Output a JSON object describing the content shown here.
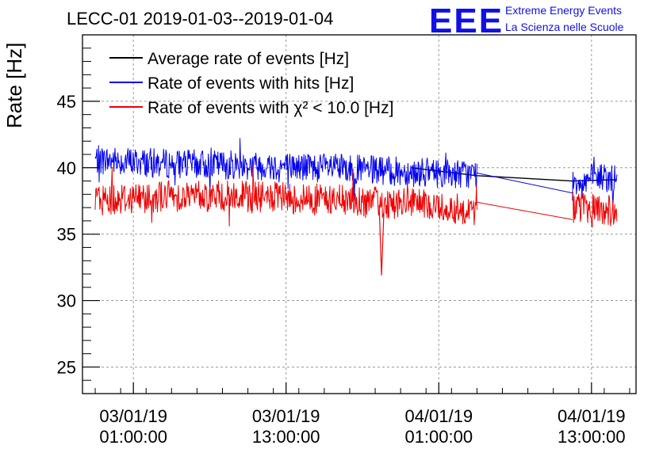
{
  "chart_data": {
    "type": "line",
    "title": "LECC-01 2019-01-03--2019-01-04",
    "ylabel": "Rate [Hz]",
    "xlabel": "",
    "ylim": [
      23,
      50
    ],
    "yticks": [
      25,
      30,
      35,
      40,
      45
    ],
    "xlim": [
      "2019-01-02 21:00:00",
      "2019-01-04 16:30:00"
    ],
    "xticks": [
      {
        "time": "2019-01-03 01:00:00",
        "label_date": "03/01/19",
        "label_time": "01:00:00"
      },
      {
        "time": "2019-01-03 13:00:00",
        "label_date": "03/01/19",
        "label_time": "13:00:00"
      },
      {
        "time": "2019-01-04 01:00:00",
        "label_date": "04/01/19",
        "label_time": "01:00:00"
      },
      {
        "time": "2019-01-04 13:00:00",
        "label_date": "04/01/19",
        "label_time": "13:00:00"
      }
    ],
    "grid": true,
    "legend_position": "top-left",
    "series": [
      {
        "name": "Average rate of events [Hz]",
        "color": "#000000",
        "segments": [
          [
            [
              "2019-01-03 22:50:00",
              40.0
            ],
            [
              "2019-01-04 04:00:00",
              39.4
            ],
            [
              "2019-01-04 11:30:00",
              39.0
            ],
            [
              "2019-01-04 15:00:00",
              39.1
            ]
          ]
        ]
      },
      {
        "name": "Rate of events with hits [Hz]",
        "color": "#0000ee",
        "segments": [
          [
            [
              "2019-01-02 22:00:00",
              40.6
            ],
            [
              "2019-01-03 04:00:00",
              40.3
            ],
            [
              "2019-01-03 10:00:00",
              40.2
            ],
            [
              "2019-01-03 16:00:00",
              40.0
            ],
            [
              "2019-01-03 22:00:00",
              39.7
            ],
            [
              "2019-01-04 04:00:00",
              39.5
            ]
          ],
          [
            [
              "2019-01-04 04:00:00",
              39.6
            ],
            [
              "2019-01-04 11:30:00",
              38.1
            ]
          ],
          [
            [
              "2019-01-04 11:30:00",
              39.0
            ],
            [
              "2019-01-04 14:00:00",
              39.3
            ],
            [
              "2019-01-04 15:00:00",
              39.0
            ]
          ]
        ]
      },
      {
        "name": "Rate of events with χ² < 10.0 [Hz]",
        "color": "#ee0000",
        "segments": [
          [
            [
              "2019-01-02 22:00:00",
              37.6
            ],
            [
              "2019-01-03 04:00:00",
              37.9
            ],
            [
              "2019-01-03 10:00:00",
              37.8
            ],
            [
              "2019-01-03 16:00:00",
              37.6
            ],
            [
              "2019-01-03 22:00:00",
              37.3
            ],
            [
              "2019-01-04 04:00:00",
              36.8
            ]
          ],
          [
            [
              "2019-01-04 04:00:00",
              37.4
            ],
            [
              "2019-01-04 11:30:00",
              36.1
            ]
          ],
          [
            [
              "2019-01-04 11:30:00",
              37.0
            ],
            [
              "2019-01-04 14:00:00",
              36.8
            ],
            [
              "2019-01-04 15:00:00",
              36.6
            ]
          ]
        ],
        "annotations": [
          {
            "time": "2019-01-03 20:30:00",
            "value": 31.9,
            "note": "dip"
          }
        ]
      }
    ]
  },
  "logo": {
    "text": "EEE",
    "line1": "Extreme Energy Events",
    "line2": "La Scienza nelle Scuole",
    "color": "#1010e6"
  }
}
